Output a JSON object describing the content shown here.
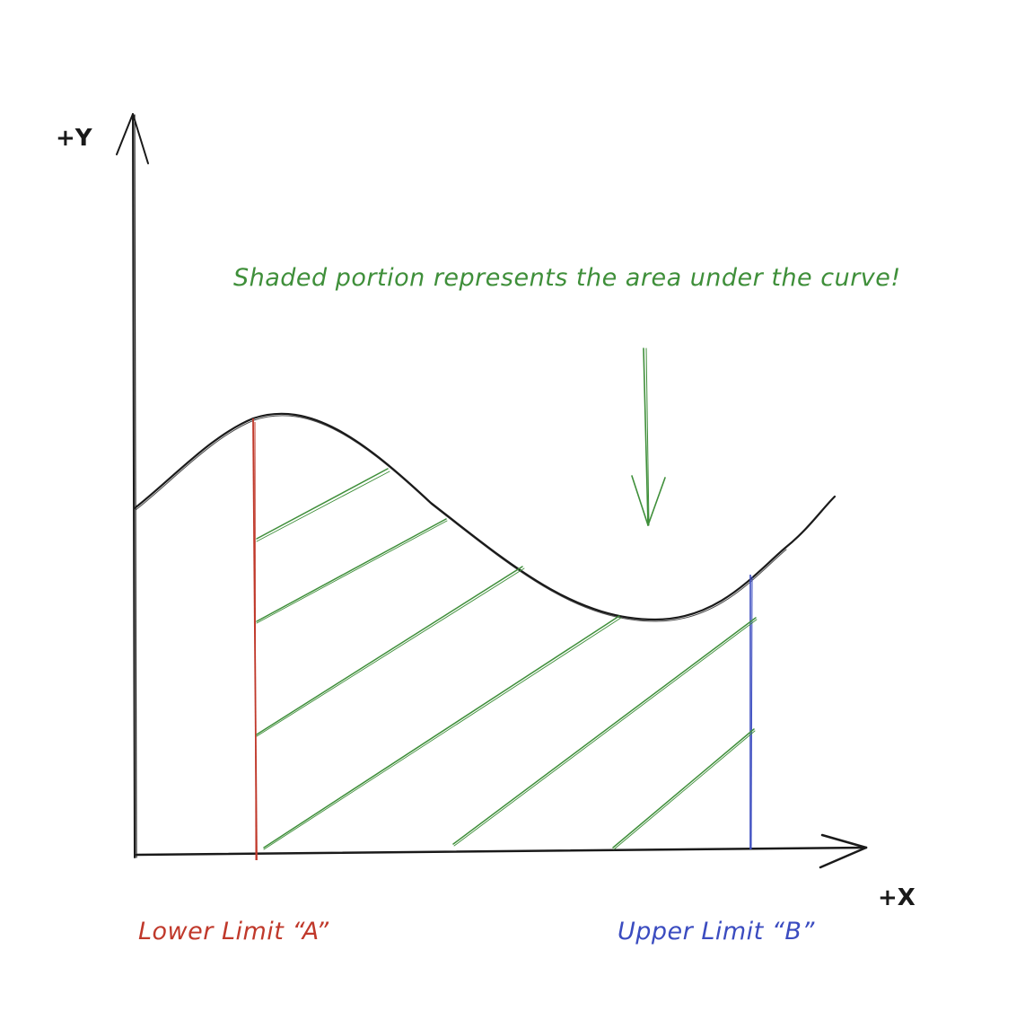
{
  "y_axis_label": "+Y",
  "x_axis_label": "+X",
  "annotation": "Shaded portion represents the area under the curve!",
  "lower_limit_label": "Lower Limit “A”",
  "upper_limit_label": "Upper Limit “B”",
  "colors": {
    "ink": "#1a1a1a",
    "annotation": "#3f8f3a",
    "hatch": "#3f8f3a",
    "lower_limit": "#c0392b",
    "upper_limit": "#3b4cc0"
  }
}
